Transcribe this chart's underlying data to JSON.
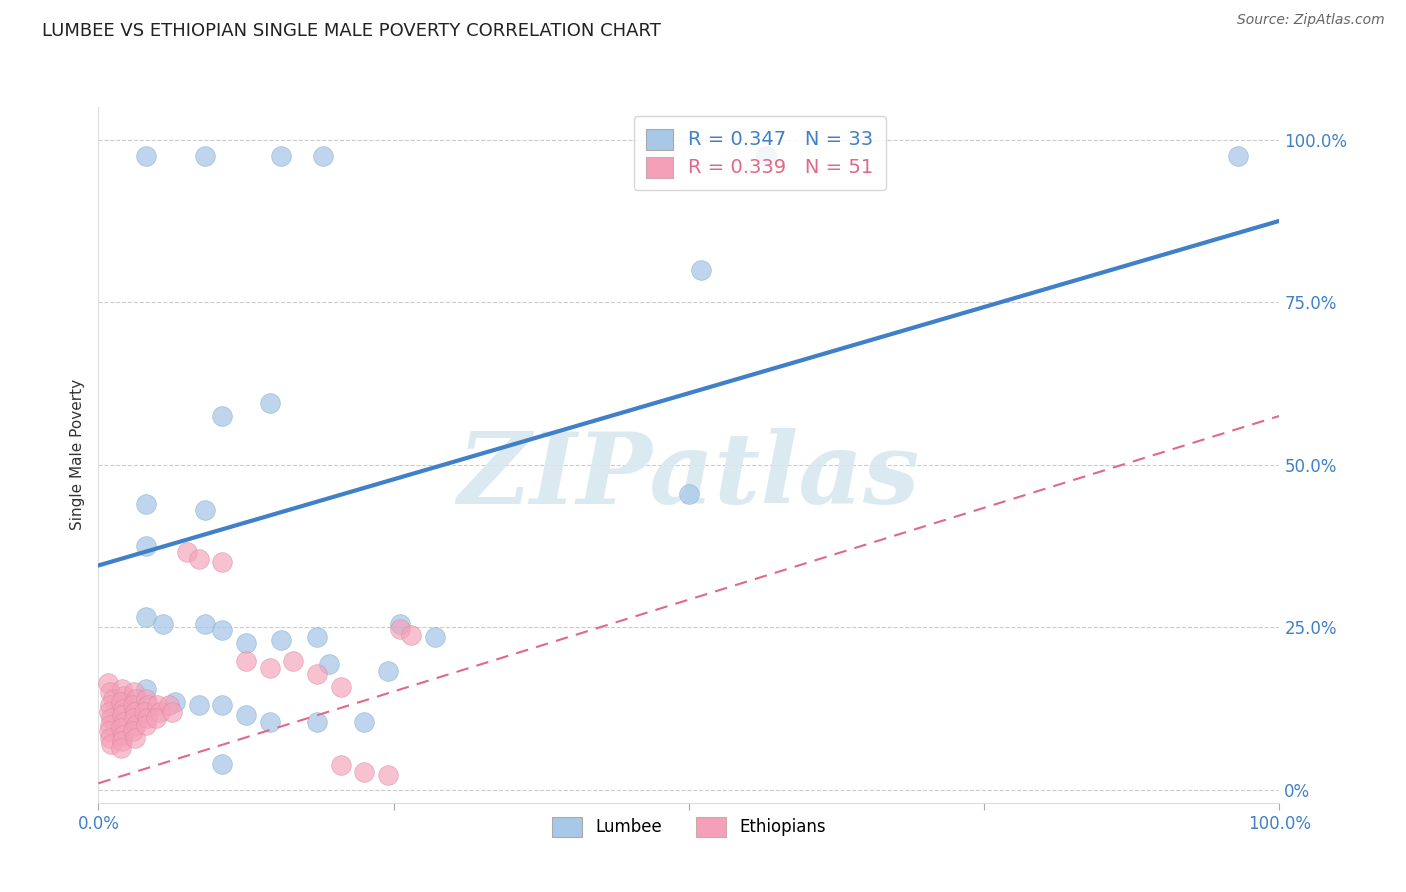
{
  "title": "LUMBEE VS ETHIOPIAN SINGLE MALE POVERTY CORRELATION CHART",
  "source": "Source: ZipAtlas.com",
  "ylabel": "Single Male Poverty",
  "xlim": [
    0.0,
    1.0
  ],
  "ylim": [
    -0.02,
    1.05
  ],
  "plot_ylim": [
    0.0,
    1.0
  ],
  "ytick_positions": [
    0.0,
    0.25,
    0.5,
    0.75,
    1.0
  ],
  "ytick_labels_right": [
    "0%",
    "25.0%",
    "50.0%",
    "75.0%",
    "100.0%"
  ],
  "xtick_positions": [
    0.0,
    0.25,
    0.5,
    0.75,
    1.0
  ],
  "xtick_labels": [
    "0.0%",
    "",
    "",
    "",
    "100.0%"
  ],
  "lumbee_R": "0.347",
  "lumbee_N": "33",
  "ethiopian_R": "0.339",
  "ethiopian_N": "51",
  "lumbee_color": "#a8c8e8",
  "ethiopian_color": "#f4a0b8",
  "lumbee_line_color": "#4080c8",
  "ethiopian_line_color": "#e06888",
  "watermark": "ZIPatlas",
  "background_color": "#ffffff",
  "grid_color": "#cccccc",
  "lumbee_points": [
    [
      0.04,
      0.975
    ],
    [
      0.09,
      0.975
    ],
    [
      0.155,
      0.975
    ],
    [
      0.19,
      0.975
    ],
    [
      0.565,
      0.975
    ],
    [
      0.965,
      0.975
    ],
    [
      0.51,
      0.8
    ],
    [
      0.5,
      0.455
    ],
    [
      0.105,
      0.575
    ],
    [
      0.145,
      0.595
    ],
    [
      0.04,
      0.44
    ],
    [
      0.09,
      0.43
    ],
    [
      0.04,
      0.375
    ],
    [
      0.04,
      0.265
    ],
    [
      0.055,
      0.255
    ],
    [
      0.09,
      0.255
    ],
    [
      0.105,
      0.245
    ],
    [
      0.125,
      0.225
    ],
    [
      0.155,
      0.23
    ],
    [
      0.185,
      0.235
    ],
    [
      0.255,
      0.255
    ],
    [
      0.285,
      0.235
    ],
    [
      0.195,
      0.193
    ],
    [
      0.245,
      0.183
    ],
    [
      0.04,
      0.155
    ],
    [
      0.065,
      0.135
    ],
    [
      0.085,
      0.13
    ],
    [
      0.105,
      0.13
    ],
    [
      0.125,
      0.115
    ],
    [
      0.145,
      0.105
    ],
    [
      0.185,
      0.105
    ],
    [
      0.225,
      0.105
    ],
    [
      0.105,
      0.04
    ]
  ],
  "ethiopian_points": [
    [
      0.008,
      0.165
    ],
    [
      0.01,
      0.15
    ],
    [
      0.012,
      0.14
    ],
    [
      0.01,
      0.13
    ],
    [
      0.009,
      0.12
    ],
    [
      0.011,
      0.11
    ],
    [
      0.01,
      0.1
    ],
    [
      0.009,
      0.09
    ],
    [
      0.01,
      0.08
    ],
    [
      0.011,
      0.07
    ],
    [
      0.02,
      0.155
    ],
    [
      0.022,
      0.145
    ],
    [
      0.019,
      0.135
    ],
    [
      0.021,
      0.125
    ],
    [
      0.02,
      0.115
    ],
    [
      0.022,
      0.105
    ],
    [
      0.019,
      0.095
    ],
    [
      0.021,
      0.085
    ],
    [
      0.02,
      0.075
    ],
    [
      0.019,
      0.065
    ],
    [
      0.03,
      0.15
    ],
    [
      0.032,
      0.14
    ],
    [
      0.029,
      0.13
    ],
    [
      0.031,
      0.12
    ],
    [
      0.03,
      0.11
    ],
    [
      0.032,
      0.1
    ],
    [
      0.029,
      0.09
    ],
    [
      0.031,
      0.08
    ],
    [
      0.04,
      0.14
    ],
    [
      0.042,
      0.13
    ],
    [
      0.039,
      0.12
    ],
    [
      0.041,
      0.11
    ],
    [
      0.04,
      0.1
    ],
    [
      0.05,
      0.13
    ],
    [
      0.052,
      0.12
    ],
    [
      0.049,
      0.11
    ],
    [
      0.06,
      0.13
    ],
    [
      0.062,
      0.12
    ],
    [
      0.075,
      0.365
    ],
    [
      0.085,
      0.355
    ],
    [
      0.105,
      0.35
    ],
    [
      0.125,
      0.198
    ],
    [
      0.145,
      0.188
    ],
    [
      0.165,
      0.198
    ],
    [
      0.185,
      0.178
    ],
    [
      0.205,
      0.158
    ],
    [
      0.205,
      0.038
    ],
    [
      0.225,
      0.028
    ],
    [
      0.245,
      0.022
    ],
    [
      0.255,
      0.248
    ],
    [
      0.265,
      0.238
    ]
  ],
  "lumbee_trend_x": [
    0.0,
    1.0
  ],
  "lumbee_trend_y": [
    0.345,
    0.875
  ],
  "ethiopian_trend_x": [
    0.0,
    1.0
  ],
  "ethiopian_trend_y": [
    0.01,
    0.575
  ]
}
